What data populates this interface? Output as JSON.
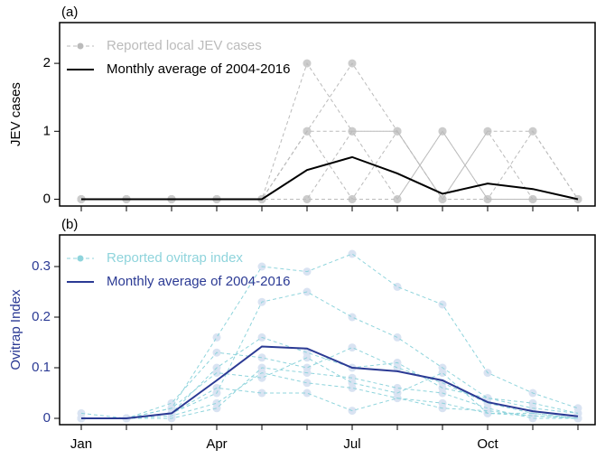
{
  "chart_data": [
    {
      "type": "line",
      "panel_label": "(a)",
      "ylabel": "JEV cases",
      "axis_color": "#000000",
      "ylim": [
        -0.1,
        2.6
      ],
      "yticks": [
        0,
        1,
        2
      ],
      "series": [
        {
          "name": "Reported local JEV cases",
          "color": "#bbbbbb",
          "point_color": "#cccccc",
          "dashed": true,
          "values": [
            [
              0,
              0,
              0,
              0,
              0,
              2,
              1,
              1,
              0,
              1,
              1,
              0
            ],
            [
              0,
              0,
              0,
              0,
              0,
              1,
              2,
              1,
              0,
              0,
              0,
              0
            ],
            [
              0,
              0,
              0,
              0,
              0,
              1,
              1,
              0,
              1,
              0,
              0,
              0
            ],
            [
              0,
              0,
              0,
              0,
              0,
              0,
              1,
              1,
              0,
              1,
              0,
              0
            ],
            [
              0,
              0,
              0,
              0,
              0,
              1,
              0,
              1,
              0,
              0,
              1,
              0
            ],
            [
              0,
              0,
              0,
              0,
              0,
              0,
              0,
              0,
              1,
              0,
              0,
              0
            ]
          ]
        },
        {
          "name": "Monthly average of 2004-2016",
          "color": "#000000",
          "dashed": false,
          "values": [
            0,
            0,
            0,
            0,
            0,
            0.43,
            0.62,
            0.38,
            0.08,
            0.23,
            0.15,
            0
          ]
        }
      ]
    },
    {
      "type": "line",
      "panel_label": "(b)",
      "ylabel": "Ovitrap Index",
      "axis_color": "#2b3a94",
      "categories": [
        "Jan",
        null,
        null,
        "Apr",
        null,
        null,
        "Jul",
        null,
        null,
        "Oct",
        null,
        null
      ],
      "ylim": [
        -0.0125,
        0.3625
      ],
      "yticks": [
        0,
        0.1,
        0.2,
        0.3
      ],
      "series": [
        {
          "name": "Reported ovitrap index",
          "color": "#8fd4dc",
          "point_color": "#d9e3f2",
          "dashed": true,
          "values": [
            [
              0.01,
              0,
              0.02,
              0.16,
              0.3,
              0.29,
              0.325,
              0.26,
              0.225,
              0.09,
              0.05,
              0.02
            ],
            [
              0,
              0,
              0.01,
              0.05,
              0.23,
              0.25,
              0.2,
              0.16,
              0.1,
              0.04,
              0.02,
              0.01
            ],
            [
              0,
              0,
              0.03,
              0.13,
              0.12,
              0.1,
              0.14,
              0.1,
              0.07,
              0.03,
              0.01,
              0
            ],
            [
              0,
              0,
              0,
              0.02,
              0.1,
              0.09,
              0.08,
              0.06,
              0.05,
              0.02,
              0,
              0
            ],
            [
              0,
              0,
              0.02,
              0.09,
              0.08,
              0.12,
              0.07,
              0.05,
              0.09,
              0.01,
              0.005,
              0
            ],
            [
              0,
              0,
              0.01,
              0.06,
              0.05,
              0.05,
              0.015,
              0.04,
              0.03,
              0.01,
              0.01,
              0
            ],
            [
              0,
              0,
              0.005,
              0.03,
              0.09,
              0.07,
              0.06,
              0.04,
              0.02,
              0.015,
              0.005,
              0
            ],
            [
              0,
              0,
              0.01,
              0.1,
              0.16,
              0.13,
              0.1,
              0.11,
              0.06,
              0.04,
              0.03,
              0.01
            ]
          ]
        },
        {
          "name": "Monthly average of 2004-2016",
          "color": "#2b3a94",
          "dashed": false,
          "values": [
            0,
            0,
            0.01,
            0.075,
            0.142,
            0.138,
            0.1,
            0.093,
            0.075,
            0.032,
            0.014,
            0.004
          ]
        }
      ]
    }
  ]
}
